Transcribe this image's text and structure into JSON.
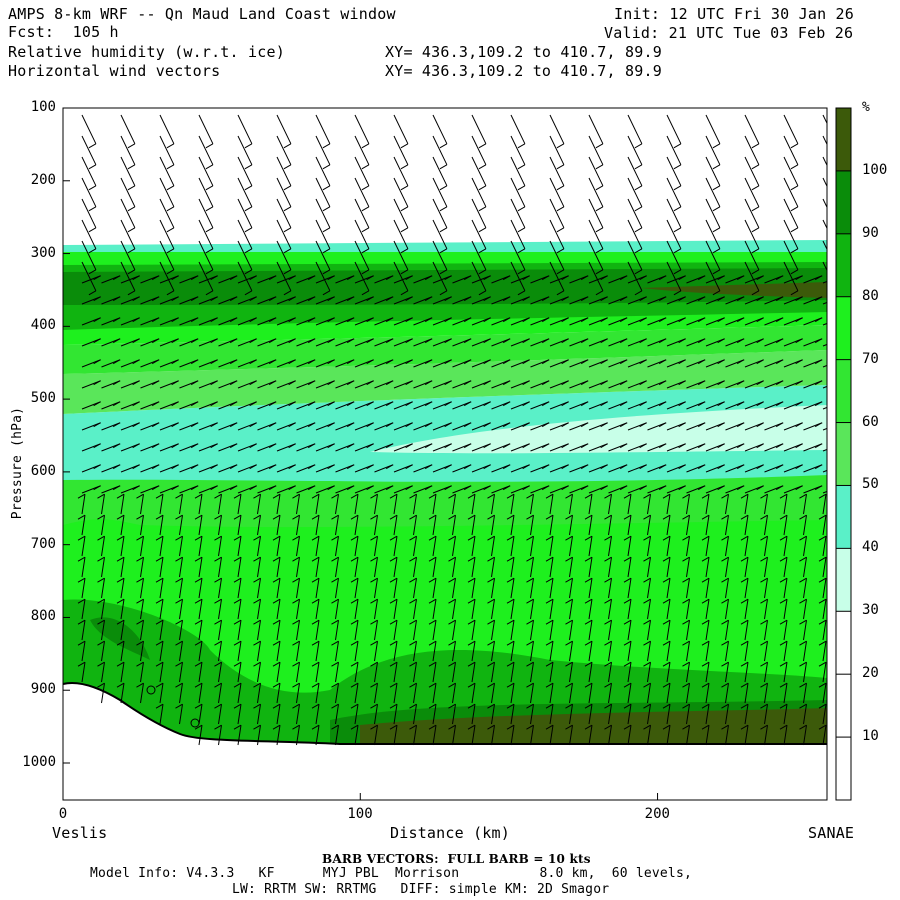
{
  "header": {
    "title": "AMPS 8-km WRF -- Qn Maud Land Coast window",
    "fcst": "Fcst:  105 h",
    "field1": "Relative humidity (w.r.t. ice)",
    "field2": "Horizontal wind vectors",
    "init": "Init: 12 UTC Fri 30 Jan 26",
    "valid": "Valid: 21 UTC Tue 03 Feb 26",
    "xy1": "XY= 436.3,109.2 to 410.7, 89.9",
    "xy2": "XY= 436.3,109.2 to 410.7, 89.9"
  },
  "chart_data": {
    "type": "heatmap",
    "ylabel": "Pressure (hPa)",
    "xlabel": "Distance (km)",
    "x_left_label": "Veslis",
    "x_right_label": "SANAE",
    "yticks": [
      "100",
      "200",
      "300",
      "400",
      "500",
      "600",
      "700",
      "800",
      "900",
      "1000"
    ],
    "xticks": [
      "0",
      "100",
      "200"
    ],
    "colorbar_unit": "%",
    "colorbar_ticks": [
      "10",
      "20",
      "30",
      "40",
      "50",
      "60",
      "70",
      "80",
      "90",
      "100"
    ],
    "colors": {
      "c20_30": "#ffffff",
      "c30_40": "#c8ffe8",
      "c40_50": "#5af0c8",
      "c50_60": "#5ae65a",
      "c60_70": "#32e632",
      "c70_80": "#1ef01e",
      "c80_90": "#10b410",
      "c90_100": "#0a8c0a",
      "c100": "#3c5a0a"
    }
  },
  "footer": {
    "barb": "BARB VECTORS:  FULL BARB = 10 kts",
    "model1": "Model Info: V4.3.3   KF      MYJ PBL  Morrison          8.0 km,  60 levels,",
    "model2": "LW: RRTM SW: RRTMG   DIFF: simple KM: 2D Smagor"
  }
}
